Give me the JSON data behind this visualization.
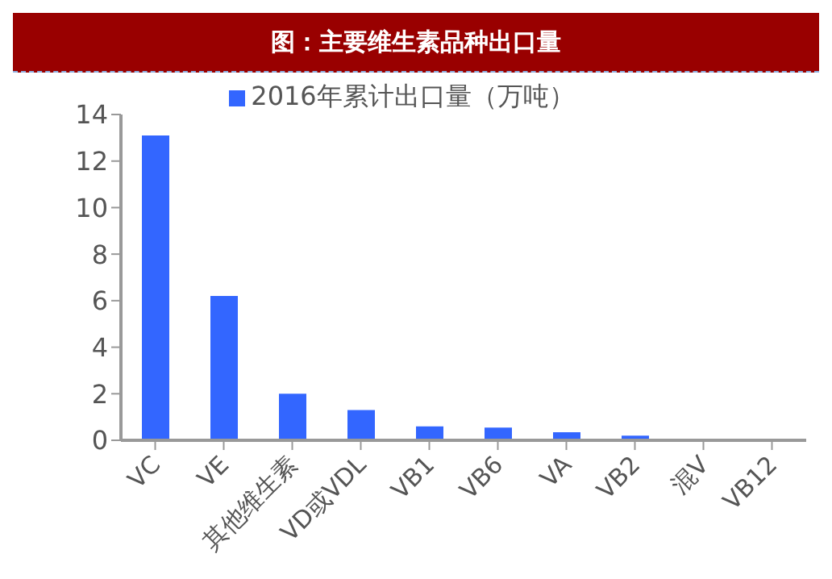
{
  "chart_data": {
    "type": "bar",
    "title": "图：主要维生素品种出口量",
    "categories": [
      "VC",
      "VE",
      "其他维生素",
      "VD或VDL",
      "VB1",
      "VB6",
      "VA",
      "VB2",
      "混V",
      "VB12"
    ],
    "series": [
      {
        "name": "2016年累计出口量（万吨）",
        "color": "#3366ff",
        "values": [
          13.1,
          6.2,
          2.0,
          1.3,
          0.6,
          0.55,
          0.35,
          0.2,
          null,
          null
        ]
      }
    ],
    "ylim": [
      0,
      14
    ],
    "yticks": [
      0,
      2,
      4,
      6,
      8,
      10,
      12,
      14
    ],
    "grid": false,
    "legend": "top"
  }
}
